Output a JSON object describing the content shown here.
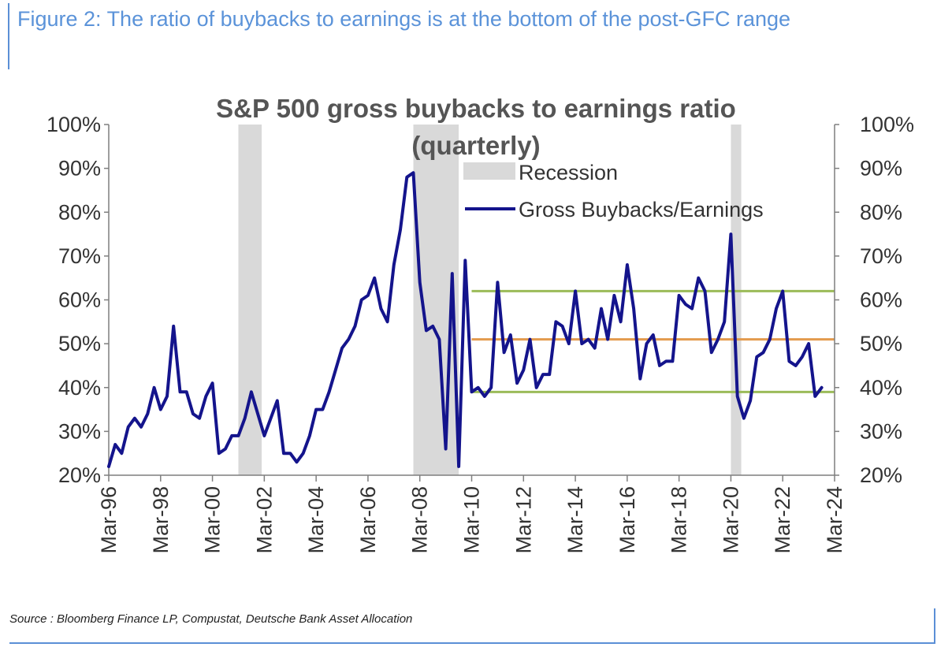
{
  "figure": {
    "title": "Figure 2: The ratio of buybacks to earnings is at the bottom of the post-GFC range",
    "source": "Source : Bloomberg Finance LP, Compustat, Deutsche Bank Asset Allocation"
  },
  "colors": {
    "line": "#14148c",
    "recession": "#d9d9d9",
    "band": "#9bbb59",
    "mean": "#e39a4d",
    "axis": "#7f7f7f",
    "title_text": "#5b93d9"
  },
  "chart_data": {
    "type": "line",
    "title": "S&P 500 gross buybacks to earnings ratio (quarterly)",
    "title_lines": [
      "S&P 500 gross buybacks to earnings ratio",
      "(quarterly)"
    ],
    "xlabel": "",
    "ylabel": "",
    "ylim": [
      0.2,
      1.0
    ],
    "y_ticks": [
      "100%",
      "90%",
      "80%",
      "70%",
      "60%",
      "50%",
      "40%",
      "30%",
      "20%"
    ],
    "y_tick_values": [
      1.0,
      0.9,
      0.8,
      0.7,
      0.6,
      0.5,
      0.4,
      0.3,
      0.2
    ],
    "x_ticks": [
      "Mar-96",
      "Mar-98",
      "Mar-00",
      "Mar-02",
      "Mar-04",
      "Mar-06",
      "Mar-08",
      "Mar-10",
      "Mar-12",
      "Mar-14",
      "Mar-16",
      "Mar-18",
      "Mar-20",
      "Mar-22",
      "Mar-24"
    ],
    "x_tick_years": [
      1996,
      1998,
      2000,
      2002,
      2004,
      2006,
      2008,
      2010,
      2012,
      2014,
      2016,
      2018,
      2020,
      2022,
      2024
    ],
    "xlim": [
      1996.0,
      2024.0
    ],
    "legend": {
      "position": "top-right",
      "entries": [
        {
          "name": "Recession",
          "kind": "area"
        },
        {
          "name": "Gross Buybacks/Earnings",
          "kind": "line"
        }
      ]
    },
    "recessions": [
      [
        2001.0,
        2001.9
      ],
      [
        2007.75,
        2009.5
      ],
      [
        2020.0,
        2020.4
      ]
    ],
    "reference_lines": [
      {
        "name": "post-GFC upper",
        "y": 0.62,
        "x_start": 2010.0,
        "x_end": 2024.0,
        "color": "#9bbb59"
      },
      {
        "name": "post-GFC mean",
        "y": 0.51,
        "x_start": 2010.0,
        "x_end": 2024.0,
        "color": "#e39a4d"
      },
      {
        "name": "post-GFC lower",
        "y": 0.39,
        "x_start": 2010.0,
        "x_end": 2024.0,
        "color": "#9bbb59"
      }
    ],
    "series": [
      {
        "name": "Gross Buybacks/Earnings",
        "x": [
          1996.0,
          1996.25,
          1996.5,
          1996.75,
          1997.0,
          1997.25,
          1997.5,
          1997.75,
          1998.0,
          1998.25,
          1998.5,
          1998.75,
          1999.0,
          1999.25,
          1999.5,
          1999.75,
          2000.0,
          2000.25,
          2000.5,
          2000.75,
          2001.0,
          2001.25,
          2001.5,
          2001.75,
          2002.0,
          2002.25,
          2002.5,
          2002.75,
          2003.0,
          2003.25,
          2003.5,
          2003.75,
          2004.0,
          2004.25,
          2004.5,
          2004.75,
          2005.0,
          2005.25,
          2005.5,
          2005.75,
          2006.0,
          2006.25,
          2006.5,
          2006.75,
          2007.0,
          2007.25,
          2007.5,
          2007.75,
          2008.0,
          2008.25,
          2008.5,
          2008.75,
          2009.0,
          2009.25,
          2009.5,
          2009.75,
          2010.0,
          2010.25,
          2010.5,
          2010.75,
          2011.0,
          2011.25,
          2011.5,
          2011.75,
          2012.0,
          2012.25,
          2012.5,
          2012.75,
          2013.0,
          2013.25,
          2013.5,
          2013.75,
          2014.0,
          2014.25,
          2014.5,
          2014.75,
          2015.0,
          2015.25,
          2015.5,
          2015.75,
          2016.0,
          2016.25,
          2016.5,
          2016.75,
          2017.0,
          2017.25,
          2017.5,
          2017.75,
          2018.0,
          2018.25,
          2018.5,
          2018.75,
          2019.0,
          2019.25,
          2019.5,
          2019.75,
          2020.0,
          2020.25,
          2020.5,
          2020.75,
          2021.0,
          2021.25,
          2021.5,
          2021.75,
          2022.0,
          2022.25,
          2022.5,
          2022.75,
          2023.0,
          2023.25,
          2023.5
        ],
        "values": [
          0.22,
          0.27,
          0.25,
          0.31,
          0.33,
          0.31,
          0.34,
          0.4,
          0.35,
          0.38,
          0.54,
          0.39,
          0.39,
          0.34,
          0.33,
          0.38,
          0.41,
          0.25,
          0.26,
          0.29,
          0.29,
          0.33,
          0.39,
          0.34,
          0.29,
          0.33,
          0.37,
          0.25,
          0.25,
          0.23,
          0.25,
          0.29,
          0.35,
          0.35,
          0.39,
          0.44,
          0.49,
          0.51,
          0.54,
          0.6,
          0.61,
          0.65,
          0.58,
          0.55,
          0.68,
          0.76,
          0.88,
          0.89,
          0.64,
          0.53,
          0.54,
          0.51,
          0.26,
          0.66,
          0.22,
          0.69,
          0.39,
          0.4,
          0.38,
          0.4,
          0.64,
          0.48,
          0.52,
          0.41,
          0.44,
          0.51,
          0.4,
          0.43,
          0.43,
          0.55,
          0.54,
          0.5,
          0.62,
          0.5,
          0.51,
          0.49,
          0.58,
          0.51,
          0.61,
          0.55,
          0.68,
          0.58,
          0.42,
          0.5,
          0.52,
          0.45,
          0.46,
          0.46,
          0.61,
          0.59,
          0.58,
          0.65,
          0.62,
          0.48,
          0.51,
          0.55,
          0.75,
          0.38,
          0.33,
          0.37,
          0.47,
          0.48,
          0.51,
          0.58,
          0.62,
          0.46,
          0.45,
          0.47,
          0.5,
          0.38,
          0.4
        ]
      }
    ]
  }
}
